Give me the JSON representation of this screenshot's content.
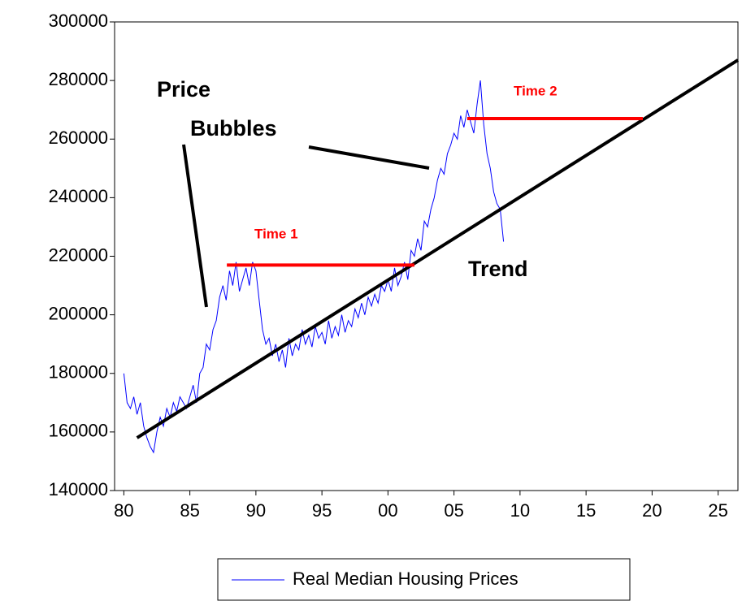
{
  "chart_data": {
    "type": "line",
    "x": [
      1980,
      1980.25,
      1980.5,
      1980.75,
      1981,
      1981.25,
      1981.5,
      1981.75,
      1982,
      1982.25,
      1982.5,
      1982.75,
      1983,
      1983.25,
      1983.5,
      1983.75,
      1984,
      1984.25,
      1984.5,
      1984.75,
      1985,
      1985.25,
      1985.5,
      1985.75,
      1986,
      1986.25,
      1986.5,
      1986.75,
      1987,
      1987.25,
      1987.5,
      1987.75,
      1988,
      1988.25,
      1988.5,
      1988.75,
      1989,
      1989.25,
      1989.5,
      1989.75,
      1990,
      1990.25,
      1990.5,
      1990.75,
      1991,
      1991.25,
      1991.5,
      1991.75,
      1992,
      1992.25,
      1992.5,
      1992.75,
      1993,
      1993.25,
      1993.5,
      1993.75,
      1994,
      1994.25,
      1994.5,
      1994.75,
      1995,
      1995.25,
      1995.5,
      1995.75,
      1996,
      1996.25,
      1996.5,
      1996.75,
      1997,
      1997.25,
      1997.5,
      1997.75,
      1998,
      1998.25,
      1998.5,
      1998.75,
      1999,
      1999.25,
      1999.5,
      1999.75,
      2000,
      2000.25,
      2000.5,
      2000.75,
      2001,
      2001.25,
      2001.5,
      2001.75,
      2002,
      2002.25,
      2002.5,
      2002.75,
      2003,
      2003.25,
      2003.5,
      2003.75,
      2004,
      2004.25,
      2004.5,
      2004.75,
      2005,
      2005.25,
      2005.5,
      2005.75,
      2006,
      2006.25,
      2006.5,
      2006.75,
      2007,
      2007.25,
      2007.5,
      2007.75,
      2008,
      2008.25,
      2008.5,
      2008.75
    ],
    "series": [
      {
        "name": "Real Median Housing Prices",
        "color": "#0000ff",
        "values": [
          180000,
          170000,
          168000,
          172000,
          166000,
          170000,
          162000,
          158000,
          155000,
          153000,
          160000,
          165000,
          162000,
          168000,
          165000,
          170000,
          167000,
          172000,
          170000,
          168000,
          172000,
          176000,
          170000,
          180000,
          182000,
          190000,
          188000,
          195000,
          198000,
          206000,
          210000,
          205000,
          215000,
          210000,
          218000,
          208000,
          212000,
          216000,
          210000,
          218000,
          215000,
          205000,
          195000,
          190000,
          192000,
          186000,
          190000,
          184000,
          188000,
          182000,
          192000,
          186000,
          190000,
          188000,
          195000,
          190000,
          193000,
          189000,
          196000,
          192000,
          194000,
          190000,
          198000,
          192000,
          196000,
          193000,
          200000,
          194000,
          198000,
          196000,
          202000,
          199000,
          204000,
          200000,
          206000,
          203000,
          207000,
          204000,
          210000,
          208000,
          212000,
          208000,
          216000,
          210000,
          213000,
          218000,
          212000,
          222000,
          220000,
          226000,
          222000,
          232000,
          230000,
          236000,
          240000,
          246000,
          250000,
          248000,
          255000,
          258000,
          262000,
          260000,
          268000,
          264000,
          270000,
          266000,
          262000,
          272000,
          280000,
          265000,
          255000,
          250000,
          242000,
          238000,
          236000,
          225000
        ]
      }
    ],
    "trend": {
      "label": "Trend",
      "x": [
        1981,
        2026.5
      ],
      "values": [
        158000,
        287000
      ]
    },
    "bubble_labels": [
      "Price",
      "Bubbles"
    ],
    "periods": [
      {
        "label": "Time 1",
        "x": [
          1987.8,
          2002
        ],
        "value": 217000
      },
      {
        "label": "Time 2",
        "x": [
          2006,
          2019.3
        ],
        "value": 267000
      }
    ],
    "xlim": [
      1979.3,
      2026.5
    ],
    "xticks": [
      {
        "value": 1980,
        "label": "80"
      },
      {
        "value": 1985,
        "label": "85"
      },
      {
        "value": 1990,
        "label": "90"
      },
      {
        "value": 1995,
        "label": "95"
      },
      {
        "value": 2000,
        "label": "00"
      },
      {
        "value": 2005,
        "label": "05"
      },
      {
        "value": 2010,
        "label": "10"
      },
      {
        "value": 2015,
        "label": "15"
      },
      {
        "value": 2020,
        "label": "20"
      },
      {
        "value": 2025,
        "label": "25"
      }
    ],
    "ylim": [
      140000,
      300000
    ],
    "yticks": [
      140000,
      160000,
      180000,
      200000,
      220000,
      240000,
      260000,
      280000,
      300000
    ],
    "grid": false
  }
}
